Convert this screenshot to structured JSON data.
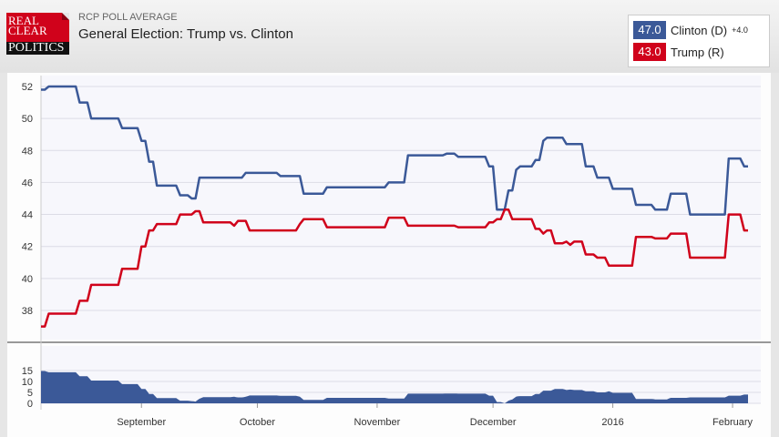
{
  "header": {
    "logo": [
      "REAL",
      "CLEAR",
      "POLITICS"
    ],
    "subtitle": "RCP POLL AVERAGE",
    "title": "General Election: Trump vs. Clinton"
  },
  "legend": [
    {
      "value": "47.0",
      "label": "Clinton (D)",
      "spread": "+4.0",
      "color": "#3b5998"
    },
    {
      "value": "43.0",
      "label": "Trump (R)",
      "color": "#d0021b"
    }
  ],
  "chart_data": {
    "type": "line",
    "x_start": "2015-08-06",
    "x_end": "2016-02-05",
    "xticks": [
      {
        "date": "2015-09-01",
        "label": "September"
      },
      {
        "date": "2015-10-01",
        "label": "October"
      },
      {
        "date": "2015-11-01",
        "label": "November"
      },
      {
        "date": "2015-12-01",
        "label": "December"
      },
      {
        "date": "2016-01-01",
        "label": "2016"
      },
      {
        "date": "2016-02-01",
        "label": "February"
      }
    ],
    "yticks": [
      38,
      40,
      42,
      44,
      46,
      48,
      50,
      52
    ],
    "ylim": [
      37,
      52.3
    ],
    "spread_yticks": [
      0,
      5,
      10,
      15
    ],
    "spread_ylim": [
      0,
      15
    ],
    "grid": true,
    "series": [
      {
        "name": "Clinton (D)",
        "color": "#3b5998",
        "points": [
          [
            "2015-08-06",
            51.8
          ],
          [
            "2015-08-08",
            52
          ],
          [
            "2015-08-16",
            51
          ],
          [
            "2015-08-19",
            50
          ],
          [
            "2015-08-27",
            49.4
          ],
          [
            "2015-09-01",
            48.6
          ],
          [
            "2015-09-03",
            47.3
          ],
          [
            "2015-09-05",
            45.8
          ],
          [
            "2015-09-11",
            45.2
          ],
          [
            "2015-09-14",
            45
          ],
          [
            "2015-09-16",
            46.3
          ],
          [
            "2015-09-28",
            46.6
          ],
          [
            "2015-10-07",
            46.4
          ],
          [
            "2015-10-13",
            45.3
          ],
          [
            "2015-10-19",
            45.7
          ],
          [
            "2015-11-04",
            46
          ],
          [
            "2015-11-09",
            47.7
          ],
          [
            "2015-11-19",
            47.8
          ],
          [
            "2015-11-22",
            47.6
          ],
          [
            "2015-11-30",
            47
          ],
          [
            "2015-12-02",
            44.3
          ],
          [
            "2015-12-05",
            45.5
          ],
          [
            "2015-12-07",
            46.8
          ],
          [
            "2015-12-08",
            47
          ],
          [
            "2015-12-12",
            47.4
          ],
          [
            "2015-12-14",
            48.6
          ],
          [
            "2015-12-15",
            48.8
          ],
          [
            "2015-12-20",
            48.4
          ],
          [
            "2015-12-25",
            47
          ],
          [
            "2015-12-28",
            46.3
          ],
          [
            "2016-01-01",
            45.6
          ],
          [
            "2016-01-07",
            44.6
          ],
          [
            "2016-01-12",
            44.3
          ],
          [
            "2016-01-16",
            45.3
          ],
          [
            "2016-01-21",
            44
          ],
          [
            "2016-01-31",
            47.5
          ],
          [
            "2016-02-04",
            47
          ]
        ]
      },
      {
        "name": "Trump (R)",
        "color": "#d0021b",
        "points": [
          [
            "2015-08-06",
            37
          ],
          [
            "2015-08-08",
            37.8
          ],
          [
            "2015-08-16",
            38.6
          ],
          [
            "2015-08-19",
            39.6
          ],
          [
            "2015-08-27",
            40.6
          ],
          [
            "2015-09-01",
            42
          ],
          [
            "2015-09-03",
            43
          ],
          [
            "2015-09-05",
            43.4
          ],
          [
            "2015-09-11",
            44
          ],
          [
            "2015-09-15",
            44.2
          ],
          [
            "2015-09-17",
            43.5
          ],
          [
            "2015-09-25",
            43.3
          ],
          [
            "2015-09-26",
            43.6
          ],
          [
            "2015-09-29",
            43
          ],
          [
            "2015-10-12",
            43.4
          ],
          [
            "2015-10-13",
            43.7
          ],
          [
            "2015-10-19",
            43.2
          ],
          [
            "2015-11-04",
            43.8
          ],
          [
            "2015-11-09",
            43.3
          ],
          [
            "2015-11-22",
            43.2
          ],
          [
            "2015-11-30",
            43.5
          ],
          [
            "2015-12-02",
            43.7
          ],
          [
            "2015-12-04",
            44.3
          ],
          [
            "2015-12-06",
            43.7
          ],
          [
            "2015-12-12",
            43.1
          ],
          [
            "2015-12-14",
            42.8
          ],
          [
            "2015-12-15",
            43
          ],
          [
            "2015-12-17",
            42.2
          ],
          [
            "2015-12-20",
            42.3
          ],
          [
            "2015-12-21",
            42.1
          ],
          [
            "2015-12-22",
            42.3
          ],
          [
            "2015-12-25",
            41.5
          ],
          [
            "2015-12-28",
            41.3
          ],
          [
            "2015-12-31",
            40.8
          ],
          [
            "2016-01-07",
            42.6
          ],
          [
            "2016-01-12",
            42.5
          ],
          [
            "2016-01-16",
            42.8
          ],
          [
            "2016-01-21",
            41.3
          ],
          [
            "2016-01-31",
            44
          ],
          [
            "2016-02-04",
            43
          ]
        ]
      }
    ]
  }
}
